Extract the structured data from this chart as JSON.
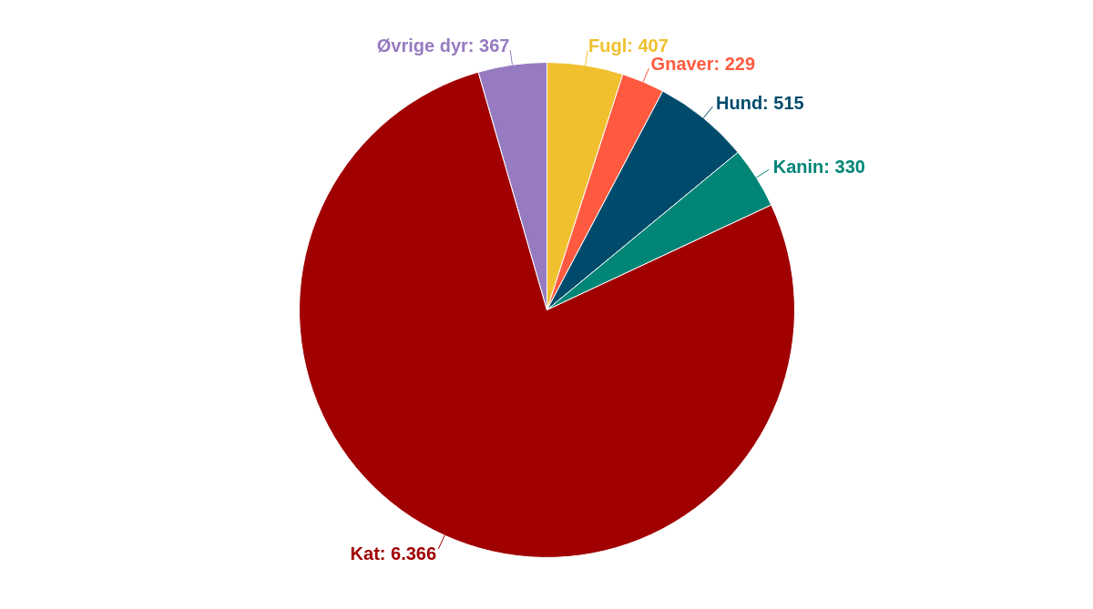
{
  "chart_data": {
    "type": "pie",
    "categories": [
      "Fugl",
      "Gnaver",
      "Hund",
      "Kanin",
      "Kat",
      "Øvrige dyr"
    ],
    "values": [
      407,
      229,
      515,
      330,
      6366,
      367
    ],
    "value_labels": [
      "407",
      "229",
      "515",
      "330",
      "6.366",
      "367"
    ],
    "colors": [
      "#f0c02e",
      "#ff5a40",
      "#004b6b",
      "#008577",
      "#a00000",
      "#967bc0"
    ]
  }
}
